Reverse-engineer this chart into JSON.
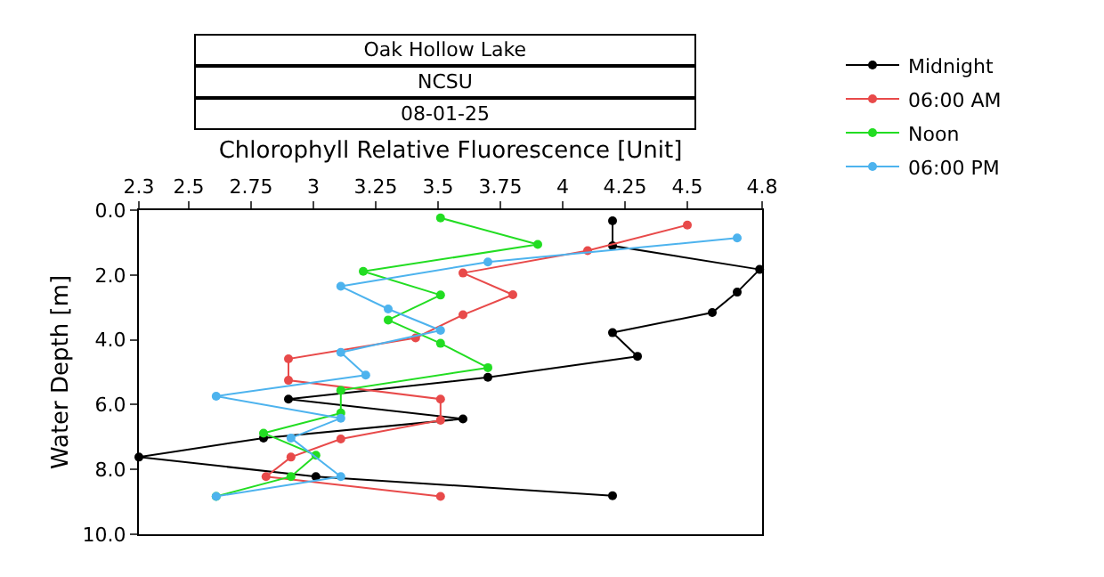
{
  "chart_data": {
    "type": "line",
    "title": "Oak Hollow Lake",
    "subtitle": "NCSU",
    "annotations": [
      "08-01-25"
    ],
    "xlabel": "Chlorophyll Relative Fluorescence [Unit]",
    "ylabel": "Water Depth [m]",
    "xlim": [
      2.3,
      4.8
    ],
    "xticks": [
      2.3,
      2.5,
      2.75,
      3,
      3.25,
      3.5,
      3.75,
      4,
      4.25,
      4.5,
      4.8
    ],
    "ylim": [
      10,
      0
    ],
    "yticks": [
      {
        "value": 0,
        "label": "0.0"
      },
      {
        "value": 2,
        "label": "2.0"
      },
      {
        "value": 4,
        "label": "4.0"
      },
      {
        "value": 6,
        "label": "6.0"
      },
      {
        "value": 8,
        "label": "8.0"
      },
      {
        "value": 10,
        "label": "10.0"
      }
    ],
    "legend": "top right",
    "marker": "circle",
    "line_style": "solid",
    "series": [
      {
        "name": "Midnight",
        "color": "#000000",
        "x": [
          4.2,
          4.2,
          4.79,
          4.7,
          4.6,
          4.2,
          4.3,
          3.7,
          2.9,
          3.6,
          2.8,
          2.3,
          3.01,
          4.2
        ],
        "values": [
          0.33,
          1.1,
          1.83,
          2.53,
          3.16,
          3.78,
          4.51,
          5.16,
          5.83,
          6.44,
          7.03,
          7.62,
          8.22,
          8.81
        ]
      },
      {
        "name": "06:00 AM",
        "color": "#e84a4a",
        "x": [
          4.5,
          4.1,
          3.6,
          3.8,
          3.6,
          3.41,
          2.9,
          2.9,
          3.51,
          3.51,
          3.11,
          2.91,
          2.81,
          3.51
        ],
        "values": [
          0.46,
          1.25,
          1.94,
          2.61,
          3.23,
          3.94,
          4.59,
          5.25,
          5.83,
          6.48,
          7.06,
          7.62,
          8.22,
          8.83
        ]
      },
      {
        "name": "Noon",
        "color": "#22dd22",
        "x": [
          3.51,
          3.9,
          3.2,
          3.51,
          3.3,
          3.51,
          3.7,
          3.11,
          3.11,
          2.8,
          3.01,
          2.91,
          2.61
        ],
        "values": [
          0.24,
          1.06,
          1.89,
          2.62,
          3.39,
          4.11,
          4.86,
          5.56,
          6.26,
          6.88,
          7.56,
          8.22,
          8.83
        ]
      },
      {
        "name": "06:00 PM",
        "color": "#4db3ee",
        "x": [
          4.7,
          3.7,
          3.11,
          3.3,
          3.51,
          3.11,
          3.21,
          2.61,
          3.11,
          2.91,
          3.11,
          2.61
        ],
        "values": [
          0.86,
          1.6,
          2.35,
          3.05,
          3.71,
          4.39,
          5.09,
          5.74,
          6.42,
          7.03,
          8.22,
          8.83
        ]
      }
    ]
  }
}
